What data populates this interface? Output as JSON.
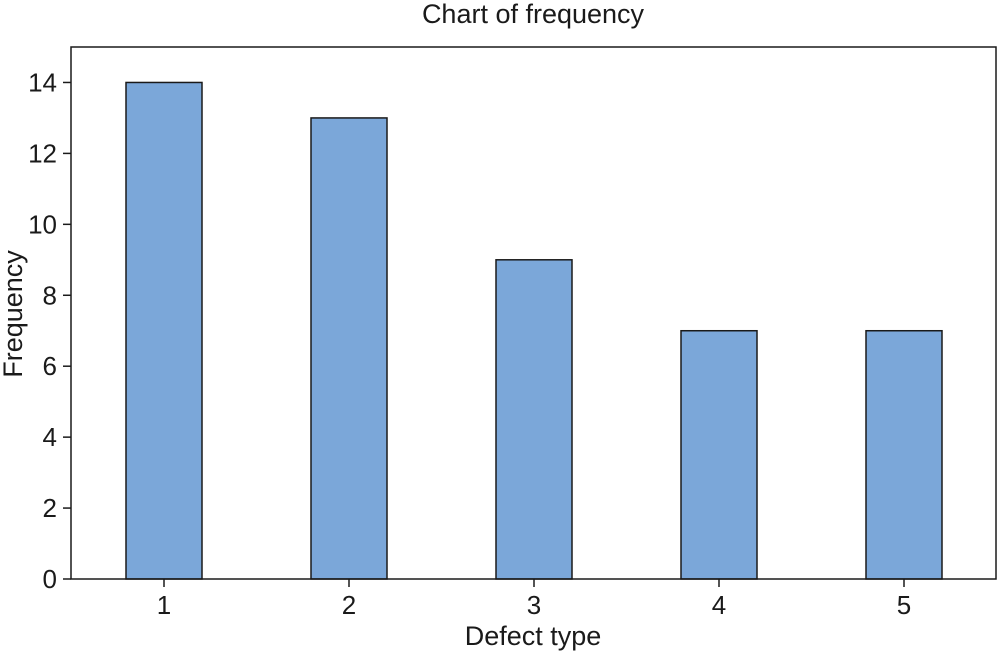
{
  "chart_data": {
    "type": "bar",
    "title": "Chart of frequency",
    "xlabel": "Defect type",
    "ylabel": "Frequency",
    "categories": [
      "1",
      "2",
      "3",
      "4",
      "5"
    ],
    "values": [
      14,
      13,
      9,
      7,
      7
    ],
    "ylim": [
      0,
      15
    ],
    "yticks": [
      "0",
      "2",
      "4",
      "6",
      "8",
      "10",
      "12",
      "14"
    ],
    "grid": false,
    "bar_color": "#7ba7d9",
    "edge_color": "#1a1a1a"
  }
}
